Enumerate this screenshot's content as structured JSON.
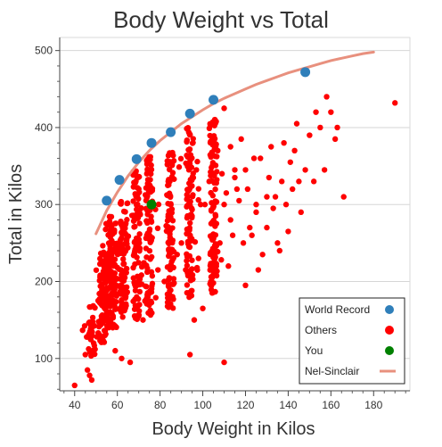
{
  "chart_data": {
    "type": "scatter",
    "title": "Body Weight vs Total",
    "xlabel": "Body Weight in Kilos",
    "ylabel": "Total in Kilos",
    "xlim": [
      33,
      197
    ],
    "ylim": [
      58,
      517
    ],
    "x_ticks": [
      40,
      60,
      80,
      100,
      120,
      140,
      160,
      180
    ],
    "y_ticks": [
      100,
      200,
      300,
      400,
      500
    ],
    "grid": "horizontal",
    "legend_position": "bottom-right",
    "colors": {
      "world_record": "#2f7fba",
      "others": "#ff0000",
      "you": "#008000",
      "nel_sinclair": "#e8907e"
    },
    "series": [
      {
        "name": "World Record",
        "kind": "points",
        "color": "#2f7fba",
        "points": [
          [
            55,
            305
          ],
          [
            61,
            332
          ],
          [
            69,
            359
          ],
          [
            76,
            380
          ],
          [
            85,
            394
          ],
          [
            94,
            418
          ],
          [
            105,
            436
          ],
          [
            148,
            472
          ]
        ]
      },
      {
        "name": "Others",
        "kind": "points",
        "color": "#ff0000",
        "clusters": [
          {
            "x": 48,
            "y_min": 100,
            "y_max": 170
          },
          {
            "x": 53,
            "y_min": 120,
            "y_max": 250
          },
          {
            "x": 56,
            "y_min": 140,
            "y_max": 290
          },
          {
            "x": 58,
            "y_min": 140,
            "y_max": 280
          },
          {
            "x": 63,
            "y_min": 150,
            "y_max": 305
          },
          {
            "x": 69,
            "y_min": 150,
            "y_max": 345
          },
          {
            "x": 75,
            "y_min": 155,
            "y_max": 365
          },
          {
            "x": 85,
            "y_min": 165,
            "y_max": 370
          },
          {
            "x": 94,
            "y_min": 175,
            "y_max": 400
          },
          {
            "x": 105,
            "y_min": 185,
            "y_max": 420
          }
        ],
        "points": [
          [
            40,
            65
          ],
          [
            46,
            128
          ],
          [
            45,
            105
          ],
          [
            46,
            85
          ],
          [
            47,
            78
          ],
          [
            48,
            72
          ],
          [
            51,
            175
          ],
          [
            59,
            110
          ],
          [
            62,
            100
          ],
          [
            66,
            95
          ],
          [
            70,
            155
          ],
          [
            72,
            150
          ],
          [
            94,
            105
          ],
          [
            110,
            95
          ],
          [
            96,
            150
          ],
          [
            100,
            165
          ],
          [
            98,
            230
          ],
          [
            104,
            195
          ],
          [
            108,
            250
          ],
          [
            110,
            300
          ],
          [
            112,
            220
          ],
          [
            114,
            260
          ],
          [
            115,
            335
          ],
          [
            117,
            305
          ],
          [
            120,
            195
          ],
          [
            120,
            345
          ],
          [
            122,
            270
          ],
          [
            123,
            260
          ],
          [
            125,
            290
          ],
          [
            125,
            300
          ],
          [
            126,
            215
          ],
          [
            127,
            360
          ],
          [
            128,
            235
          ],
          [
            130,
            310
          ],
          [
            130,
            270
          ],
          [
            131,
            335
          ],
          [
            132,
            375
          ],
          [
            133,
            295
          ],
          [
            134,
            310
          ],
          [
            135,
            250
          ],
          [
            136,
            240
          ],
          [
            137,
            330
          ],
          [
            138,
            380
          ],
          [
            139,
            300
          ],
          [
            140,
            265
          ],
          [
            141,
            355
          ],
          [
            142,
            320
          ],
          [
            143,
            370
          ],
          [
            144,
            405
          ],
          [
            145,
            330
          ],
          [
            146,
            290
          ],
          [
            148,
            345
          ],
          [
            150,
            390
          ],
          [
            152,
            330
          ],
          [
            153,
            420
          ],
          [
            155,
            400
          ],
          [
            157,
            345
          ],
          [
            158,
            440
          ],
          [
            160,
            420
          ],
          [
            162,
            385
          ],
          [
            163,
            400
          ],
          [
            166,
            310
          ],
          [
            190,
            432
          ],
          [
            113,
            375
          ],
          [
            110,
            425
          ],
          [
            116,
            320
          ],
          [
            118,
            385
          ],
          [
            121,
            320
          ],
          [
            124,
            360
          ],
          [
            119,
            250
          ],
          [
            107,
            370
          ],
          [
            103,
            330
          ],
          [
            101,
            300
          ],
          [
            106,
            285
          ],
          [
            109,
            340
          ],
          [
            111,
            315
          ],
          [
            113,
            280
          ],
          [
            115,
            345
          ],
          [
            97,
            345
          ],
          [
            99,
            300
          ],
          [
            92,
            215
          ],
          [
            88,
            235
          ],
          [
            82,
            200
          ],
          [
            79,
            215
          ],
          [
            90,
            250
          ]
        ]
      },
      {
        "name": "You",
        "kind": "points",
        "color": "#008000",
        "points": [
          [
            76,
            300
          ]
        ]
      },
      {
        "name": "Nel-Sinclair",
        "kind": "line",
        "color": "#e8907e",
        "points": [
          [
            50,
            262
          ],
          [
            55,
            292
          ],
          [
            60,
            316
          ],
          [
            65,
            337
          ],
          [
            70,
            355
          ],
          [
            75,
            370
          ],
          [
            80,
            383
          ],
          [
            85,
            394
          ],
          [
            90,
            405
          ],
          [
            95,
            414
          ],
          [
            100,
            423
          ],
          [
            105,
            431
          ],
          [
            110,
            438
          ],
          [
            115,
            444
          ],
          [
            120,
            450
          ],
          [
            125,
            456
          ],
          [
            130,
            461
          ],
          [
            135,
            466
          ],
          [
            140,
            471
          ],
          [
            145,
            475
          ],
          [
            150,
            479
          ],
          [
            155,
            483
          ],
          [
            160,
            487
          ],
          [
            165,
            490
          ],
          [
            170,
            493
          ],
          [
            175,
            496
          ],
          [
            180,
            498
          ]
        ]
      }
    ]
  }
}
